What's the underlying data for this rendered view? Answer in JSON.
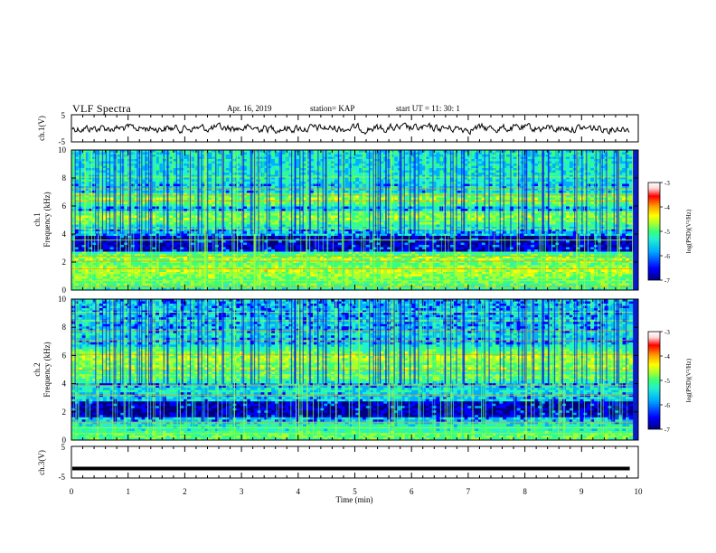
{
  "header": {
    "title": "VLF Spectra",
    "date": "Apr. 16, 2019",
    "station": "station= KAP",
    "start": "start  UT  =   11: 30: 1"
  },
  "colors": {
    "cmap": [
      "#00007f",
      "#0000ff",
      "#00b0ff",
      "#22f0d0",
      "#39ff7a",
      "#aaff2f",
      "#ffff00",
      "#ff9900",
      "#ff0000",
      "#ffd7d7",
      "#ffffff"
    ]
  },
  "chart_data": [
    {
      "type": "line",
      "name_label": "ch.1(V)",
      "ylim": [
        -5,
        5
      ],
      "yticks": [
        "5",
        "-5"
      ],
      "xlim": [
        0,
        10
      ],
      "description_values": {
        "mean": 0,
        "amplitude_approx": 2
      }
    },
    {
      "type": "heatmap",
      "ylabel": "ch.1\nFrequency (kHz)",
      "ylim": [
        0,
        10
      ],
      "yticks": [
        "0",
        "2",
        "4",
        "6",
        "8",
        "10"
      ],
      "xlim": [
        0,
        10
      ],
      "colorbar": {
        "label": "log(PSD)(V²/Hz)",
        "ticks": [
          "-3",
          "-4",
          "-5",
          "-6",
          "-7"
        ],
        "range": [
          -7,
          -3
        ]
      }
    },
    {
      "type": "heatmap",
      "ylabel": "ch.2\nFrequency (kHz)",
      "ylim": [
        0,
        10
      ],
      "yticks": [
        "0",
        "2",
        "4",
        "6",
        "8",
        "10"
      ],
      "xlim": [
        0,
        10
      ],
      "colorbar": {
        "label": "log(PSD)(V²/Hz)",
        "ticks": [
          "-3",
          "-4",
          "-5",
          "-6",
          "-7"
        ],
        "range": [
          -7,
          -3
        ]
      }
    },
    {
      "type": "line",
      "name_label": "ch.3(V)",
      "ylim": [
        -5,
        5
      ],
      "yticks": [
        "5",
        "-5"
      ],
      "xlim": [
        0,
        10
      ],
      "values_constant": -2
    }
  ],
  "xaxis": {
    "label": "Time  (min)",
    "ticks": [
      "0",
      "1",
      "2",
      "3",
      "4",
      "5",
      "6",
      "7",
      "8",
      "9",
      "10"
    ]
  }
}
